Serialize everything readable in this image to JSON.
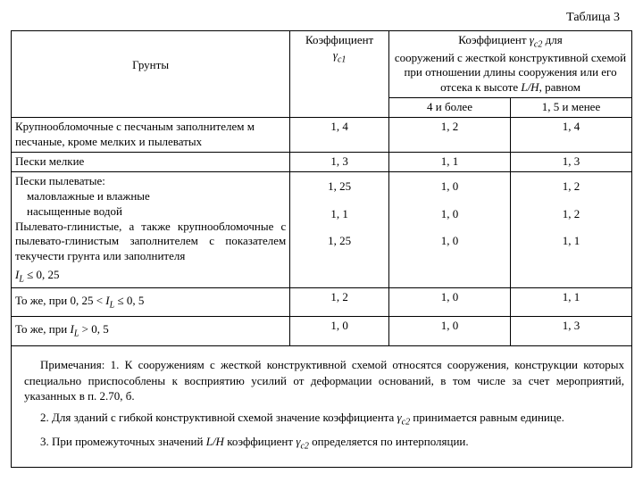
{
  "title": "Таблица 3",
  "header": {
    "col0": "Грунты",
    "col1_line1": "Коэффициент",
    "col1_sym_base": "γ",
    "col1_sym_sub": "c1",
    "col2_line1_a": "Коэффициент ",
    "col2_sym_base": "γ",
    "col2_sym_sub": "c2",
    "col2_line1_b": " для",
    "col2_line2": "сооружений с жесткой конструктивной схемой при отношении длины сооружения или его отсека к высоте ",
    "col2_frac": "L/H",
    "col2_line2_b": ", равном",
    "sub1": "4 и более",
    "sub2": "1, 5 и менее"
  },
  "rows": [
    {
      "g": "Крупнообломочные с песчаным заполнителем м песчаные, кроме мелких и пылеватых",
      "c1": "1, 4",
      "a": "1, 2",
      "b": "1, 4"
    },
    {
      "g": "Пески мелкие",
      "c1": "1, 3",
      "a": "1, 1",
      "b": "1, 3"
    },
    {
      "g": "Пески пылеватые:",
      "c1": "",
      "a": "",
      "b": ""
    },
    {
      "g": "    маловлажные и влажные",
      "c1": "1, 25",
      "a": "1, 0",
      "b": "1, 2"
    },
    {
      "g": "    насыщенные водой",
      "c1": "1, 1",
      "a": "1, 0",
      "b": "1, 2"
    },
    {
      "g": "Пылевато-глинистые, а также крупнообломочные с пылевато-глинистым заполнителем с показателем текучести грунта или заполнителя",
      "c1": "1, 25",
      "a": "1, 0",
      "b": "1, 1"
    }
  ],
  "cond_row_label_a": "I",
  "cond_row_label_sub": "L",
  "cond_row_label_b": " ≤ 0, 25",
  "row_mid_label_a": "То же, при 0, 25 < ",
  "row_mid_label_b": " ≤ 0, 5",
  "row_mid_c1": "1, 2",
  "row_mid_a": "1, 0",
  "row_mid_b": "1, 1",
  "row_last_label_a": "То же, при ",
  "row_last_label_b": " > 0, 5",
  "row_last_c1": "1, 0",
  "row_last_a": "1, 0",
  "row_last_b": "1, 3",
  "notes": {
    "n1": "Примечания: 1. К сооружениям с жесткой конструктивной схемой относятся сооружения, конструкции которых специально приспособлены к восприятию усилий от деформации оснований, в том числе за счет мероприятий, указанных в п. 2.70, б.",
    "n2a": "2. Для зданий с гибкой конструктивной схемой значение коэффициента ",
    "n2b": " принимается равным единице.",
    "n3a": "3. При промежуточных значений ",
    "n3frac": "L/H",
    "n3b": " коэффициент ",
    "n3c": " определяется по интерполяции."
  },
  "style": {
    "col_widths": [
      "310px",
      "110px",
      "135px",
      "135px"
    ]
  }
}
